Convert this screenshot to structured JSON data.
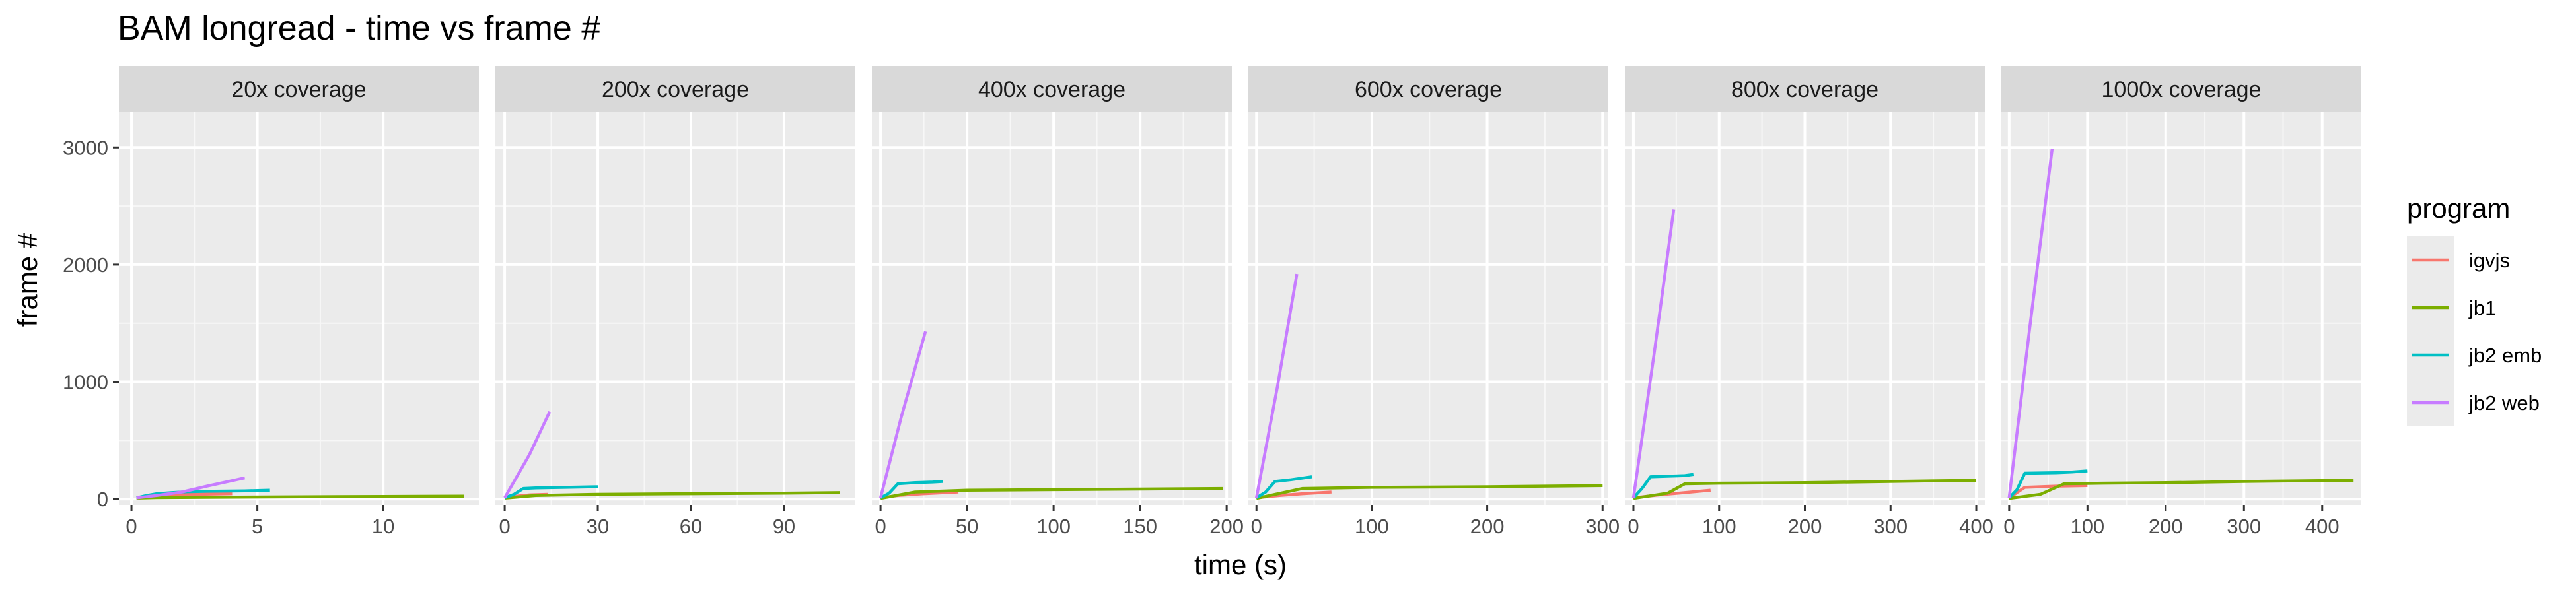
{
  "chart_data": {
    "type": "line",
    "title": "BAM longread - time vs frame #",
    "xlabel": "time (s)",
    "ylabel": "frame #",
    "ylim": [
      -50,
      3300
    ],
    "y_ticks": [
      0,
      1000,
      2000,
      3000
    ],
    "grid": true,
    "legend_title": "program",
    "legend_position": "right",
    "series_colors": {
      "igvjs": "#F8766D",
      "jb1": "#7CAE00",
      "jb2 emb": "#00BFC4",
      "jb2 web": "#C77CFF"
    },
    "legend_entries": [
      "igvjs",
      "jb1",
      "jb2 emb",
      "jb2 web"
    ],
    "panels": [
      {
        "label": "20x coverage",
        "xlim": [
          -0.5,
          13.8
        ],
        "x_ticks": [
          0,
          5,
          10
        ],
        "series": [
          {
            "name": "igvjs",
            "x": [
              0.2,
              0.8,
              1.5,
              2.5,
              4.0
            ],
            "y": [
              10,
              25,
              35,
              40,
              45
            ]
          },
          {
            "name": "jb1",
            "x": [
              0.2,
              1.0,
              3.0,
              6.0,
              10.0,
              13.2
            ],
            "y": [
              8,
              12,
              15,
              18,
              22,
              25
            ]
          },
          {
            "name": "jb2 emb",
            "x": [
              0.2,
              0.6,
              1.0,
              1.6,
              2.2,
              3.0,
              4.5,
              5.5
            ],
            "y": [
              10,
              30,
              45,
              55,
              62,
              66,
              70,
              75
            ]
          },
          {
            "name": "jb2 web",
            "x": [
              0.2,
              1.0,
              2.0,
              3.0,
              4.5
            ],
            "y": [
              10,
              30,
              60,
              110,
              180
            ]
          }
        ]
      },
      {
        "label": "200x coverage",
        "xlim": [
          -3,
          113
        ],
        "x_ticks": [
          0,
          30,
          60,
          90
        ],
        "series": [
          {
            "name": "igvjs",
            "x": [
              0,
              4,
              8,
              14
            ],
            "y": [
              10,
              25,
              35,
              40
            ]
          },
          {
            "name": "jb1",
            "x": [
              0,
              10,
              30,
              60,
              90,
              108
            ],
            "y": [
              8,
              30,
              40,
              45,
              50,
              55
            ]
          },
          {
            "name": "jb2 emb",
            "x": [
              0,
              3,
              6,
              10,
              20,
              30
            ],
            "y": [
              10,
              40,
              90,
              95,
              100,
              105
            ]
          },
          {
            "name": "jb2 web",
            "x": [
              0,
              8,
              14.5
            ],
            "y": [
              10,
              380,
              745
            ]
          }
        ]
      },
      {
        "label": "400x coverage",
        "xlim": [
          -5,
          203
        ],
        "x_ticks": [
          0,
          50,
          100,
          150,
          200
        ],
        "series": [
          {
            "name": "igvjs",
            "x": [
              0,
              10,
              25,
              45
            ],
            "y": [
              10,
              30,
              45,
              60
            ]
          },
          {
            "name": "jb1",
            "x": [
              0,
              20,
              50,
              100,
              150,
              198
            ],
            "y": [
              5,
              60,
              75,
              80,
              85,
              90
            ]
          },
          {
            "name": "jb2 emb",
            "x": [
              0,
              5,
              10,
              20,
              30,
              36
            ],
            "y": [
              10,
              50,
              130,
              140,
              145,
              150
            ]
          },
          {
            "name": "jb2 web",
            "x": [
              0,
              12,
              26
            ],
            "y": [
              10,
              700,
              1430
            ]
          }
        ]
      },
      {
        "label": "600x coverage",
        "xlim": [
          -7,
          305
        ],
        "x_ticks": [
          0,
          100,
          200,
          300
        ],
        "series": [
          {
            "name": "igvjs",
            "x": [
              0,
              20,
              40,
              65
            ],
            "y": [
              10,
              30,
              45,
              60
            ]
          },
          {
            "name": "jb1",
            "x": [
              0,
              40,
              100,
              200,
              300
            ],
            "y": [
              5,
              90,
              100,
              105,
              115
            ]
          },
          {
            "name": "jb2 emb",
            "x": [
              0,
              8,
              16,
              30,
              48
            ],
            "y": [
              10,
              60,
              150,
              165,
              190
            ]
          },
          {
            "name": "jb2 web",
            "x": [
              0,
              18,
              35
            ],
            "y": [
              10,
              950,
              1920
            ]
          }
        ]
      },
      {
        "label": "800x coverage",
        "xlim": [
          -10,
          410
        ],
        "x_ticks": [
          0,
          100,
          200,
          300,
          400
        ],
        "series": [
          {
            "name": "igvjs",
            "x": [
              0,
              30,
              60,
              90
            ],
            "y": [
              10,
              35,
              55,
              75
            ]
          },
          {
            "name": "jb1",
            "x": [
              0,
              40,
              60,
              100,
              200,
              300,
              400
            ],
            "y": [
              5,
              50,
              130,
              135,
              140,
              150,
              160
            ]
          },
          {
            "name": "jb2 emb",
            "x": [
              0,
              10,
              20,
              40,
              60,
              70
            ],
            "y": [
              10,
              90,
              190,
              195,
              200,
              210
            ]
          },
          {
            "name": "jb2 web",
            "x": [
              0,
              24,
              47
            ],
            "y": [
              10,
              1230,
              2470
            ]
          }
        ]
      },
      {
        "label": "1000x coverage",
        "xlim": [
          -10,
          450
        ],
        "x_ticks": [
          0,
          100,
          200,
          300,
          400
        ],
        "series": [
          {
            "name": "igvjs",
            "x": [
              0,
              20,
              60,
              100
            ],
            "y": [
              10,
              100,
              110,
              115
            ]
          },
          {
            "name": "jb1",
            "x": [
              0,
              40,
              70,
              120,
              200,
              300,
              440
            ],
            "y": [
              5,
              40,
              130,
              135,
              140,
              150,
              160
            ]
          },
          {
            "name": "jb2 emb",
            "x": [
              0,
              10,
              20,
              60,
              80,
              100
            ],
            "y": [
              10,
              80,
              220,
              225,
              230,
              240
            ]
          },
          {
            "name": "jb2 web",
            "x": [
              0,
              27,
              55
            ],
            "y": [
              10,
              1500,
              2990
            ]
          }
        ]
      }
    ]
  }
}
